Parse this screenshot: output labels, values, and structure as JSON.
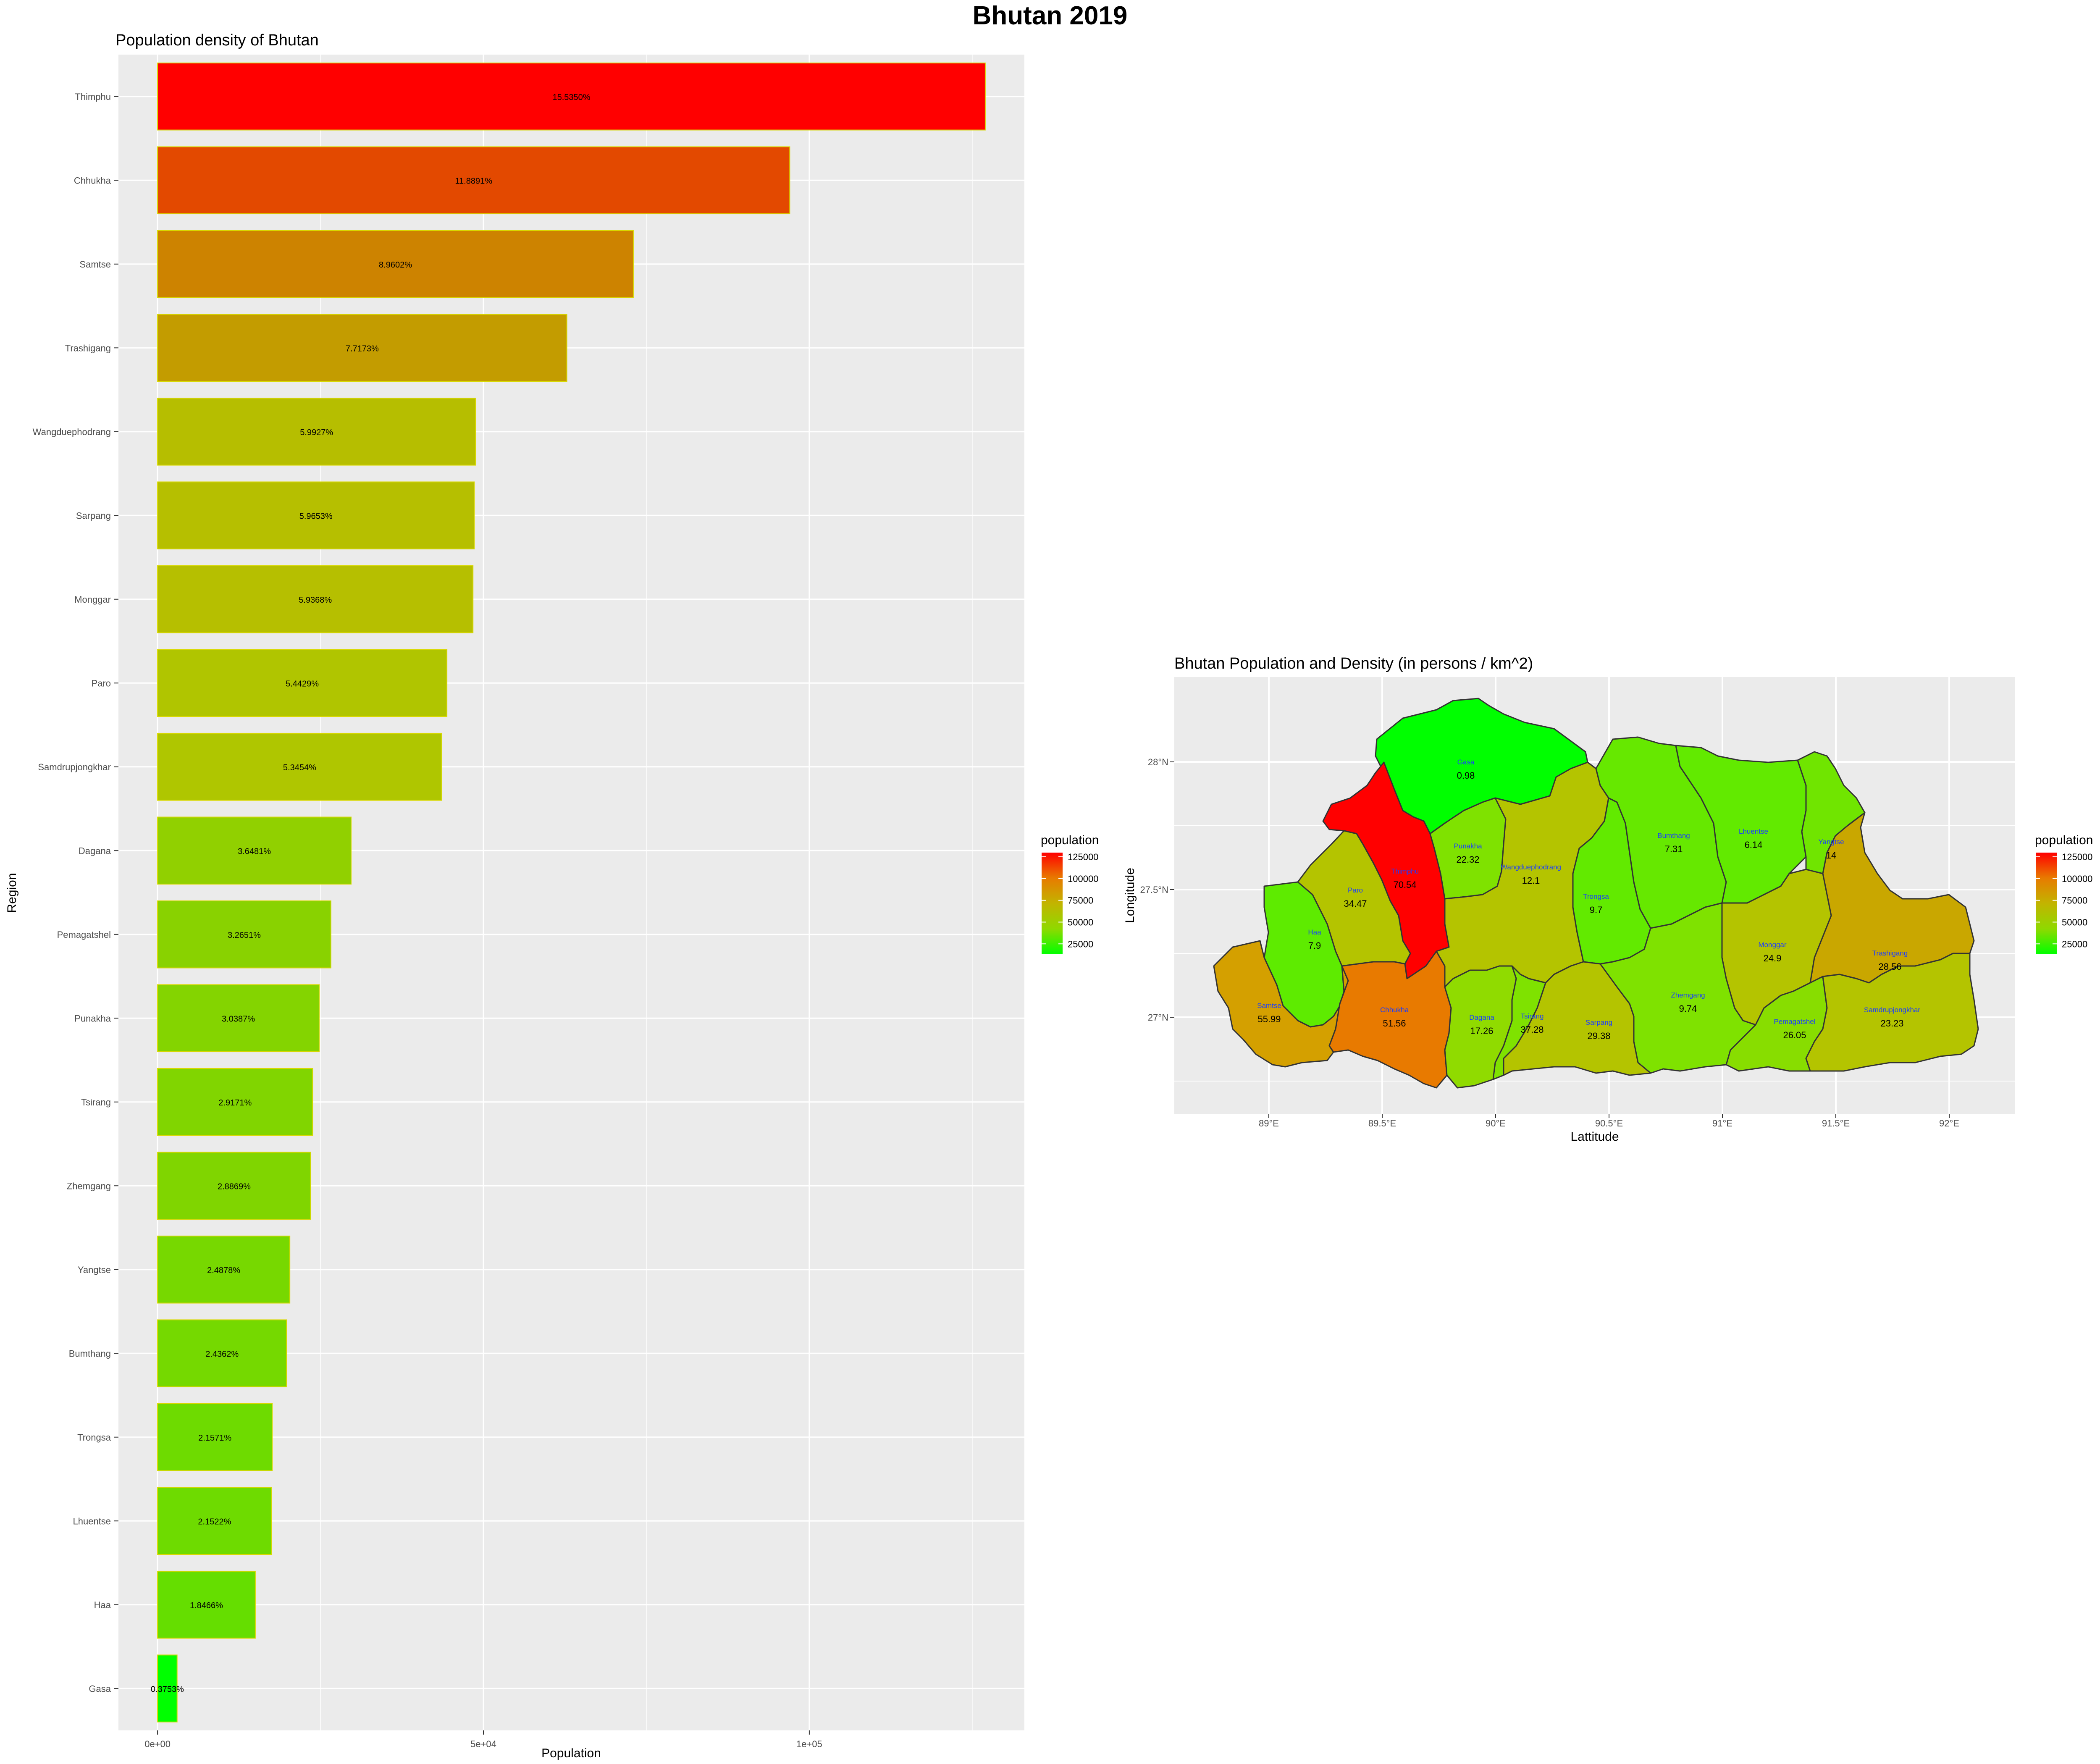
{
  "page": {
    "main_title": "Bhutan 2019"
  },
  "chart_data": [
    {
      "type": "bar",
      "orientation": "horizontal",
      "title": "Population density of Bhutan",
      "xlabel": "Population",
      "ylabel": "Region",
      "xlim": [
        -6000,
        133000
      ],
      "x_ticks": [
        {
          "value": 0,
          "label": "0e+00"
        },
        {
          "value": 50000,
          "label": "5e+04"
        },
        {
          "value": 100000,
          "label": "1e+05"
        }
      ],
      "categories": [
        "Thimphu",
        "Chhukha",
        "Samtse",
        "Trashigang",
        "Wangduephodrang",
        "Sarpang",
        "Monggar",
        "Paro",
        "Samdrupjongkhar",
        "Dagana",
        "Pemagatshel",
        "Punakha",
        "Tsirang",
        "Zhemgang",
        "Yangtse",
        "Bumthang",
        "Trongsa",
        "Lhuentse",
        "Haa",
        "Gasa"
      ],
      "values": [
        127000,
        97000,
        73000,
        62800,
        48800,
        48600,
        48400,
        44400,
        43600,
        29700,
        26600,
        24800,
        23800,
        23500,
        20300,
        19800,
        17600,
        17500,
        15000,
        3000
      ],
      "data_labels": [
        "15.5350%",
        "11.8891%",
        "8.9602%",
        "7.7173%",
        "5.9927%",
        "5.9653%",
        "5.9368%",
        "5.4429%",
        "5.3454%",
        "3.6481%",
        "3.2651%",
        "3.0387%",
        "2.9171%",
        "2.8869%",
        "2.4878%",
        "2.4362%",
        "2.1571%",
        "2.1522%",
        "1.8466%",
        "0.3753%"
      ],
      "fill_scale": {
        "low": "#00ff00",
        "mid": "#b4c400",
        "high": "#ff0000"
      },
      "grid": true
    },
    {
      "type": "choropleth",
      "title": "Bhutan Population and Density (in persons / km^2)",
      "xlabel": "Lattitude",
      "ylabel": "Longitude",
      "x_ticks": [
        "89°E",
        "89.5°E",
        "90°E",
        "90.5°E",
        "91°E",
        "91.5°E",
        "92°E"
      ],
      "y_ticks": [
        "28°N",
        "27.5°N",
        "27°N"
      ],
      "xlim": [
        88.6,
        92.3
      ],
      "ylim": [
        26.65,
        28.33
      ],
      "legend": {
        "title": "population",
        "labels": [
          "125000",
          "100000",
          "75000",
          "50000",
          "25000"
        ],
        "colors": [
          "#ff0000",
          "#e87a00",
          "#b4c400",
          "#88dd00",
          "#00ff00"
        ]
      },
      "regions": [
        {
          "name": "Gasa",
          "density": "0.98",
          "fill": "#00ff00"
        },
        {
          "name": "Thimphu",
          "density": "70.54",
          "fill": "#ff0000"
        },
        {
          "name": "Punakha",
          "density": "22.32",
          "fill": "#7fe200"
        },
        {
          "name": "Wangduephodrang",
          "density": "12.1",
          "fill": "#b4c400"
        },
        {
          "name": "Bumthang",
          "density": "7.31",
          "fill": "#66e800"
        },
        {
          "name": "Lhuentse",
          "density": "6.14",
          "fill": "#62ea00"
        },
        {
          "name": "Yangtse",
          "density": "14",
          "fill": "#70e500"
        },
        {
          "name": "Paro",
          "density": "34.47",
          "fill": "#b4c400"
        },
        {
          "name": "Trongsa",
          "density": "9.7",
          "fill": "#62ea00"
        },
        {
          "name": "Haa",
          "density": "7.9",
          "fill": "#5eeb00"
        },
        {
          "name": "Monggar",
          "density": "24.9",
          "fill": "#b4c400"
        },
        {
          "name": "Trashigang",
          "density": "28.56",
          "fill": "#c9a700"
        },
        {
          "name": "Samtse",
          "density": "55.99",
          "fill": "#d4a000"
        },
        {
          "name": "Chhukha",
          "density": "51.56",
          "fill": "#e87a00"
        },
        {
          "name": "Dagana",
          "density": "17.26",
          "fill": "#90db00"
        },
        {
          "name": "Tsirang",
          "density": "37.28",
          "fill": "#7fe200"
        },
        {
          "name": "Sarpang",
          "density": "29.38",
          "fill": "#b4c400"
        },
        {
          "name": "Zhemgang",
          "density": "9.74",
          "fill": "#7fe200"
        },
        {
          "name": "Pemagatshel",
          "density": "26.05",
          "fill": "#88dd00"
        },
        {
          "name": "Samdrupjongkhar",
          "density": "23.23",
          "fill": "#b4c400"
        }
      ]
    }
  ],
  "legend_left": {
    "title": "population",
    "labels": [
      "125000",
      "100000",
      "75000",
      "50000",
      "25000"
    ]
  }
}
